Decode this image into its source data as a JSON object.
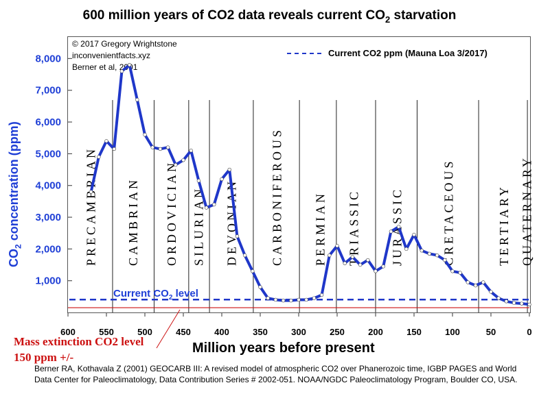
{
  "title_main": "600 million years of CO2 data reveals current CO",
  "title_sub": "2",
  "title_tail": " starvation",
  "credits": [
    "© 2017 Gregory Wrightstone",
    "inconvenientfacts.xyz",
    "Berner et al, 2001"
  ],
  "legend_label": "Current CO2 ppm (Mauna Loa 3/2017)",
  "ylabel_main": "CO",
  "ylabel_sub": "2",
  "ylabel_tail": " concentration (ppm)",
  "xlabel": "Million years before present",
  "current_level_main": "Current CO",
  "current_level_sub": "2",
  "current_level_tail": " level",
  "mass_extinction_label": "Mass extinction CO2 level 150 ppm +/-",
  "citation": "Berner RA, Kothavala Z (2001) GEOCARB III: A revised model of atmospheric CO2 over Phanerozoic time, IGBP PAGES and World Data Center for Paleoclimatology, Data Contribution Series # 2002-051. NOAA/NGDC Paleoclimatology Program, Boulder CO, USA.",
  "colors": {
    "series": "#1f37c9",
    "axis_label": "#1f3fd6",
    "extinction": "#cc1111",
    "point": "#ffffff"
  },
  "chart_data": {
    "type": "line",
    "xlim": [
      600,
      0
    ],
    "ylim": [
      0,
      8700
    ],
    "x_ticks": [
      600,
      550,
      500,
      450,
      400,
      350,
      300,
      250,
      200,
      150,
      100,
      50,
      0
    ],
    "y_ticks": [
      1000,
      2000,
      3000,
      4000,
      5000,
      6000,
      7000,
      8000
    ],
    "y_tick_labels": [
      "1,000",
      "2,000",
      "3,000",
      "4,000",
      "5,000",
      "6,000",
      "7,000",
      "8,000"
    ],
    "series": [
      {
        "x": [
          570,
          560,
          550,
          540,
          530,
          520,
          510,
          500,
          490,
          480,
          470,
          460,
          450,
          440,
          430,
          420,
          410,
          400,
          390,
          380,
          370,
          360,
          350,
          340,
          330,
          320,
          310,
          300,
          290,
          280,
          270,
          260,
          250,
          240,
          230,
          220,
          210,
          200,
          190,
          180,
          170,
          160,
          150,
          140,
          130,
          120,
          110,
          100,
          90,
          80,
          70,
          60,
          50,
          40,
          30,
          20,
          10,
          0
        ],
        "y": [
          3800,
          4900,
          5400,
          5150,
          7600,
          7800,
          6700,
          5600,
          5200,
          5150,
          5200,
          4650,
          4800,
          5100,
          4150,
          3300,
          3400,
          4200,
          4500,
          2400,
          1800,
          1300,
          800,
          450,
          400,
          375,
          375,
          400,
          400,
          450,
          550,
          1800,
          2100,
          1550,
          1750,
          1500,
          1650,
          1300,
          1450,
          2550,
          2700,
          2000,
          2450,
          1950,
          1850,
          1800,
          1650,
          1300,
          1250,
          950,
          850,
          950,
          650,
          450,
          350,
          300,
          280,
          250
        ]
      }
    ],
    "reference_line": {
      "label": "Current CO2 ppm (Mauna Loa 3/2017)",
      "y": 405
    },
    "extinction_line_y": 150,
    "periods": [
      {
        "name": "PRECAMBRIAN",
        "x_center": 570
      },
      {
        "name": "CAMBRIAN",
        "x_center": 515
      },
      {
        "name": "ORDOVICIAN",
        "x_center": 465
      },
      {
        "name": "SILURIAN",
        "x_center": 430
      },
      {
        "name": "DEVONIAN",
        "x_center": 387
      },
      {
        "name": "CARBONIFEROUS",
        "x_center": 328
      },
      {
        "name": "PERMIAN",
        "x_center": 272
      },
      {
        "name": "TRIASSIC",
        "x_center": 228
      },
      {
        "name": "JURASSIC",
        "x_center": 172
      },
      {
        "name": "CRETACEOUS",
        "x_center": 105
      },
      {
        "name": "TERTIARY",
        "x_center": 33
      },
      {
        "name": "QUATERNARY",
        "x_center": 3
      }
    ],
    "period_boundaries": [
      542,
      488,
      443,
      416,
      359,
      299,
      251,
      200,
      146,
      66,
      2.6
    ]
  }
}
